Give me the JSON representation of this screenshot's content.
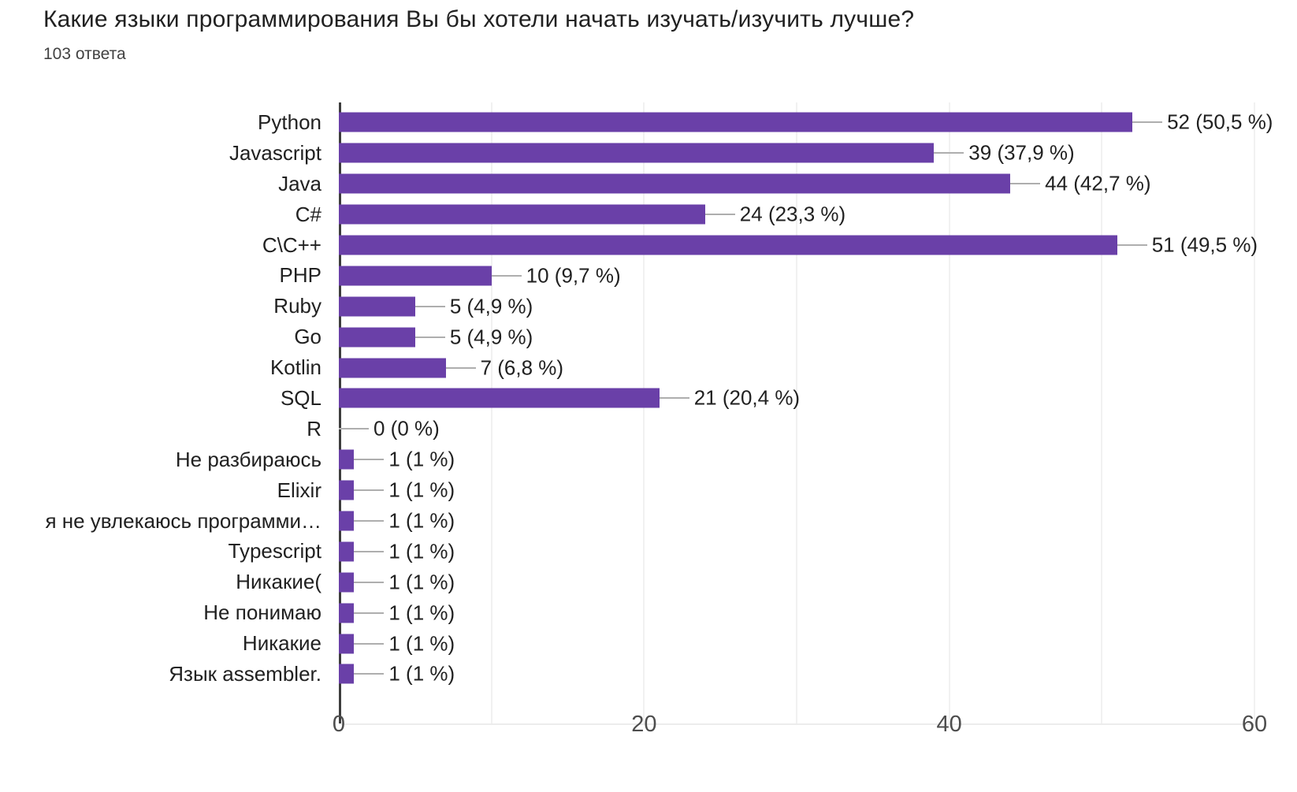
{
  "page": {
    "title": "Какие языки программирования Вы бы хотели начать изучать/изучить лучше?",
    "subtitle": "103 ответа"
  },
  "chart_data": {
    "type": "bar",
    "orientation": "horizontal",
    "title": "Какие языки программирования Вы бы хотели начать изучать/изучить лучше?",
    "subtitle": "103 ответа",
    "categories": [
      "Python",
      "Javascript",
      "Java",
      "C#",
      "C\\C++",
      "PHP",
      "Ruby",
      "Go",
      "Kotlin",
      "SQL",
      "R",
      "Не разбираюсь",
      "Elixir",
      "я не увлекаюсь программи…",
      "Typescript",
      "Никакие(",
      "Не понимаю",
      "Никакие",
      "Язык assembler."
    ],
    "values": [
      52,
      39,
      44,
      24,
      51,
      10,
      5,
      5,
      7,
      21,
      0,
      1,
      1,
      1,
      1,
      1,
      1,
      1,
      1
    ],
    "value_labels": [
      "52 (50,5 %)",
      "39 (37,9 %)",
      "44 (42,7 %)",
      "24 (23,3 %)",
      "51 (49,5 %)",
      "10 (9,7 %)",
      "5 (4,9 %)",
      "5 (4,9 %)",
      "7 (6,8 %)",
      "21 (20,4 %)",
      "0 (0 %)",
      "1 (1 %)",
      "1 (1 %)",
      "1 (1 %)",
      "1 (1 %)",
      "1 (1 %)",
      "1 (1 %)",
      "1 (1 %)",
      "1 (1 %)"
    ],
    "xlabel": "",
    "ylabel": "",
    "xlim": [
      0,
      60
    ],
    "x_ticks": [
      "0",
      "20",
      "40",
      "60"
    ],
    "grid": "vertical minor gridlines every 10 units, light gray",
    "legend": "none",
    "bar_color": "#6a40a8",
    "leader_line_color": "#aeaeae",
    "axis_line_color": "#3d3d3d"
  }
}
